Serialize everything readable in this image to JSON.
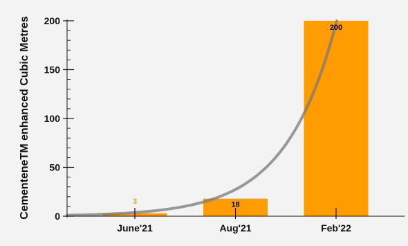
{
  "chart_data": {
    "type": "bar",
    "categories": [
      "June'21",
      "Aug'21",
      "Feb'22"
    ],
    "values": [
      3,
      18,
      200
    ],
    "data_labels": [
      "3",
      "18",
      "200"
    ],
    "ylabel": "CementeneTM enhanced Cubic Metres",
    "xlabel": "",
    "ylim": [
      0,
      200
    ],
    "yticks": [
      0,
      50,
      100,
      150,
      200
    ],
    "ytick_labels": [
      "0",
      "50",
      "100",
      "150",
      "200"
    ],
    "minor_tick_step": 10,
    "grid": false,
    "legend": "none",
    "trend_line": {
      "type": "exponential",
      "points": [
        [
          0,
          1
        ],
        [
          0.5,
          2
        ],
        [
          1,
          4
        ],
        [
          1.5,
          7
        ],
        [
          2,
          12
        ],
        [
          2.5,
          30
        ],
        [
          3,
          70
        ],
        [
          3.5,
          130
        ],
        [
          4,
          200
        ]
      ]
    },
    "colors": {
      "bar": "#ff9c00",
      "trend": "#7a7a7a",
      "label_inside": "#000000",
      "label_small": "#f2a019",
      "background": "#f3f3f3"
    }
  }
}
